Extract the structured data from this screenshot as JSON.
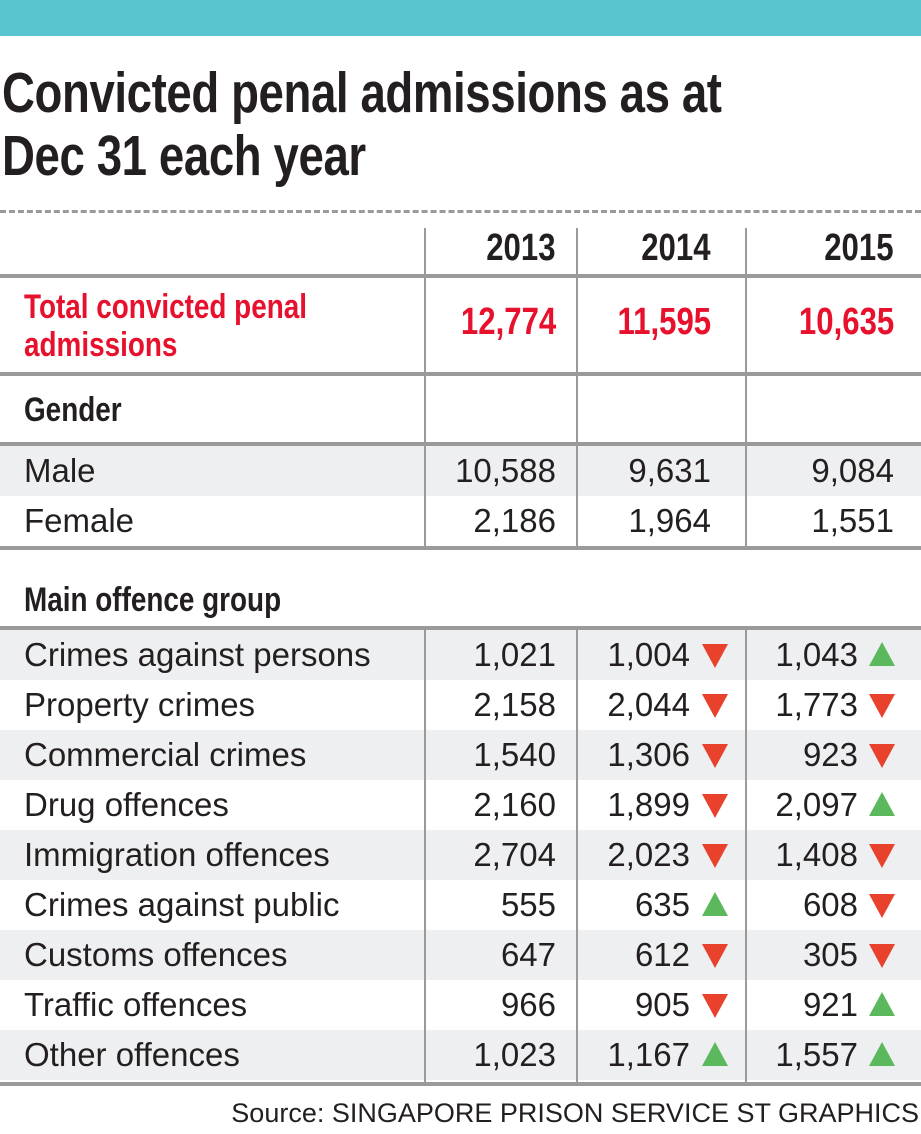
{
  "title": "Convicted penal admissions as at Dec 31 each year",
  "title_line1": "Convicted penal admissions as at",
  "title_line2": "Dec 31 each year",
  "source": "Source: SINGAPORE PRISON SERVICE   ST GRAPHICS",
  "colors": {
    "accent_bar": "#58c4d0",
    "total_red": "#e8112d",
    "down_arrow": "#e8412c",
    "up_arrow": "#5cb85c",
    "row_shade": "#eeeff1"
  },
  "chart_data": {
    "type": "table",
    "title": "Convicted penal admissions as at Dec 31 each year",
    "columns": [
      "2013",
      "2014",
      "2015"
    ],
    "total": {
      "label_line1": "Total convicted penal",
      "label_line2": "admissions",
      "values": [
        "12,774",
        "11,595",
        "10,635"
      ]
    },
    "gender": {
      "heading": "Gender",
      "rows": [
        {
          "label": "Male",
          "values": [
            "10,588",
            "9,631",
            "9,084"
          ]
        },
        {
          "label": "Female",
          "values": [
            "2,186",
            "1,964",
            "1,551"
          ]
        }
      ]
    },
    "offences": {
      "heading": "Main offence group",
      "rows": [
        {
          "label": "Crimes against persons",
          "values": [
            "1,021",
            "1,004",
            "1,043"
          ],
          "trend": [
            null,
            "down",
            "up"
          ]
        },
        {
          "label": "Property crimes",
          "values": [
            "2,158",
            "2,044",
            "1,773"
          ],
          "trend": [
            null,
            "down",
            "down"
          ]
        },
        {
          "label": "Commercial crimes",
          "values": [
            "1,540",
            "1,306",
            "923"
          ],
          "trend": [
            null,
            "down",
            "down"
          ]
        },
        {
          "label": "Drug offences",
          "values": [
            "2,160",
            "1,899",
            "2,097"
          ],
          "trend": [
            null,
            "down",
            "up"
          ]
        },
        {
          "label": "Immigration offences",
          "values": [
            "2,704",
            "2,023",
            "1,408"
          ],
          "trend": [
            null,
            "down",
            "down"
          ]
        },
        {
          "label": "Crimes against public",
          "values": [
            "555",
            "635",
            "608"
          ],
          "trend": [
            null,
            "up",
            "down"
          ]
        },
        {
          "label": "Customs offences",
          "values": [
            "647",
            "612",
            "305"
          ],
          "trend": [
            null,
            "down",
            "down"
          ]
        },
        {
          "label": "Traffic offences",
          "values": [
            "966",
            "905",
            "921"
          ],
          "trend": [
            null,
            "down",
            "up"
          ]
        },
        {
          "label": "Other offences",
          "values": [
            "1,023",
            "1,167",
            "1,557"
          ],
          "trend": [
            null,
            "up",
            "up"
          ]
        }
      ]
    }
  }
}
